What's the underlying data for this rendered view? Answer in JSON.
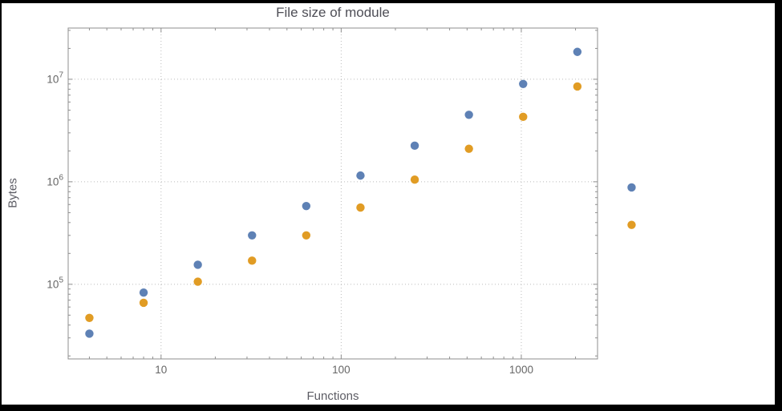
{
  "chart_data": {
    "type": "scatter",
    "title": "File size of module",
    "xlabel": "Functions",
    "ylabel": "Bytes",
    "x_scale": "log",
    "y_scale": "log",
    "x": [
      4,
      8,
      16,
      32,
      64,
      128,
      256,
      512,
      1024,
      2048,
      4096
    ],
    "series": [
      {
        "name": "blue-series",
        "color": "#5e81b5",
        "values": [
          33000,
          83000,
          155000,
          300000,
          580000,
          1150000,
          2250000,
          4500000,
          9000000,
          18500000,
          880000
        ]
      },
      {
        "name": "orange-series",
        "color": "#e19c24",
        "values": [
          47000,
          66000,
          106000,
          170000,
          300000,
          560000,
          1050000,
          2100000,
          4300000,
          8500000,
          380000
        ]
      }
    ],
    "x_ticks": [
      10,
      100,
      1000
    ],
    "x_tick_labels": [
      "10",
      "100",
      "1000"
    ],
    "y_ticks": [
      100000,
      1000000,
      10000000
    ],
    "y_tick_exponents": [
      "5",
      "6",
      "7"
    ],
    "xlim": [
      3.05,
      2650
    ],
    "ylim": [
      18700,
      31600000
    ],
    "grid": "dotted-major",
    "legend": "none"
  },
  "colors": {
    "page": "#000000",
    "background": "#ffffff",
    "frame": "#8f8f8f",
    "grid": "#bbbbbb",
    "tick": "#8f8f8f",
    "tick_label": "#666666",
    "title_text": "#4e4e56",
    "axis_label_text": "#5c5c64"
  }
}
